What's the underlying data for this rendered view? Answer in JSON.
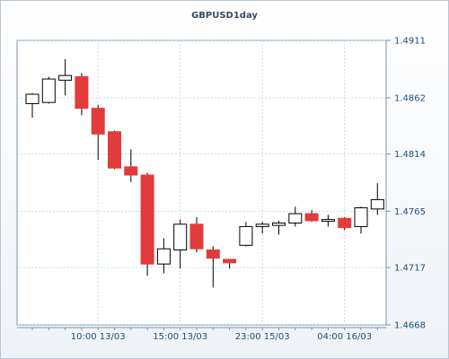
{
  "chart_data": {
    "type": "candlestick",
    "title": "GBPUSD1day",
    "xlabel": "",
    "ylabel": "",
    "ylim": [
      1.4668,
      1.4911
    ],
    "yticks": [
      "1.4911",
      "1.4862",
      "1.4814",
      "1.4765",
      "1.4717",
      "1.4668"
    ],
    "xtick_labels": [
      "10:00 13/03",
      "15:00 13/03",
      "23:00 15/03",
      "04:00 16/03"
    ],
    "grid": true,
    "colors": {
      "up": "#ffffff",
      "down": "#e23b3b",
      "wick": "#000000",
      "grid": "#a8d0dc"
    },
    "candles": [
      {
        "open": 1.4857,
        "high": 1.4866,
        "low": 1.4845,
        "close": 1.4865
      },
      {
        "open": 1.4858,
        "high": 1.488,
        "low": 1.4857,
        "close": 1.4878
      },
      {
        "open": 1.4877,
        "high": 1.4895,
        "low": 1.4864,
        "close": 1.4881
      },
      {
        "open": 1.488,
        "high": 1.4883,
        "low": 1.4847,
        "close": 1.4853
      },
      {
        "open": 1.4853,
        "high": 1.4856,
        "low": 1.4809,
        "close": 1.4831
      },
      {
        "open": 1.4833,
        "high": 1.4834,
        "low": 1.4801,
        "close": 1.4802
      },
      {
        "open": 1.4803,
        "high": 1.4818,
        "low": 1.479,
        "close": 1.4796
      },
      {
        "open": 1.4796,
        "high": 1.4798,
        "low": 1.471,
        "close": 1.472
      },
      {
        "open": 1.472,
        "high": 1.4742,
        "low": 1.4712,
        "close": 1.4733
      },
      {
        "open": 1.4732,
        "high": 1.4758,
        "low": 1.4716,
        "close": 1.4754
      },
      {
        "open": 1.4754,
        "high": 1.476,
        "low": 1.473,
        "close": 1.4733
      },
      {
        "open": 1.4732,
        "high": 1.4735,
        "low": 1.47,
        "close": 1.4725
      },
      {
        "open": 1.4724,
        "high": 1.4724,
        "low": 1.4716,
        "close": 1.4721
      },
      {
        "open": 1.4736,
        "high": 1.4756,
        "low": 1.4735,
        "close": 1.4752
      },
      {
        "open": 1.4752,
        "high": 1.4756,
        "low": 1.4746,
        "close": 1.4754
      },
      {
        "open": 1.4753,
        "high": 1.4757,
        "low": 1.4745,
        "close": 1.4755
      },
      {
        "open": 1.4755,
        "high": 1.4769,
        "low": 1.4752,
        "close": 1.4763
      },
      {
        "open": 1.4763,
        "high": 1.4766,
        "low": 1.4756,
        "close": 1.4757
      },
      {
        "open": 1.4757,
        "high": 1.4762,
        "low": 1.4752,
        "close": 1.4758
      },
      {
        "open": 1.4759,
        "high": 1.476,
        "low": 1.4749,
        "close": 1.4751
      },
      {
        "open": 1.4752,
        "high": 1.4769,
        "low": 1.4746,
        "close": 1.4768
      },
      {
        "open": 1.4767,
        "high": 1.4789,
        "low": 1.4762,
        "close": 1.4775
      }
    ]
  }
}
